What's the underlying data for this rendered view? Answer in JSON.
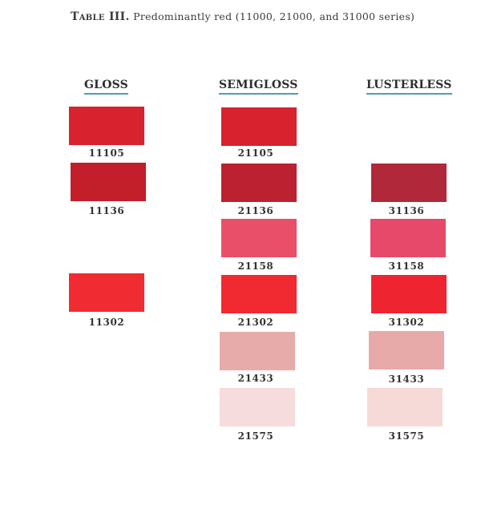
{
  "title": {
    "label": "Table III.",
    "text": "Predominantly red (11000, 21000, and 31000 series)"
  },
  "columns": [
    {
      "heading": "GLOSS",
      "chips": [
        {
          "code": "11105",
          "color": "#d8222e"
        },
        {
          "code": "11136",
          "color": "#c21f2b"
        },
        {
          "code": "11302",
          "color": "#f02b31"
        }
      ]
    },
    {
      "heading": "SEMIGLOSS",
      "chips": [
        {
          "code": "21105",
          "color": "#d8222e"
        },
        {
          "code": "21136",
          "color": "#bb2130"
        },
        {
          "code": "21158",
          "color": "#e94f68"
        },
        {
          "code": "21302",
          "color": "#f12a31"
        },
        {
          "code": "21433",
          "color": "#e7aca9"
        },
        {
          "code": "21575",
          "color": "#f6dcdc"
        }
      ]
    },
    {
      "heading": "LUSTERLESS",
      "chips": [
        {
          "code": "31136",
          "color": "#b0283a"
        },
        {
          "code": "31158",
          "color": "#e7496a"
        },
        {
          "code": "31302",
          "color": "#ef2431"
        },
        {
          "code": "31433",
          "color": "#e7aaa9"
        },
        {
          "code": "31575",
          "color": "#f6dad8"
        }
      ]
    }
  ]
}
